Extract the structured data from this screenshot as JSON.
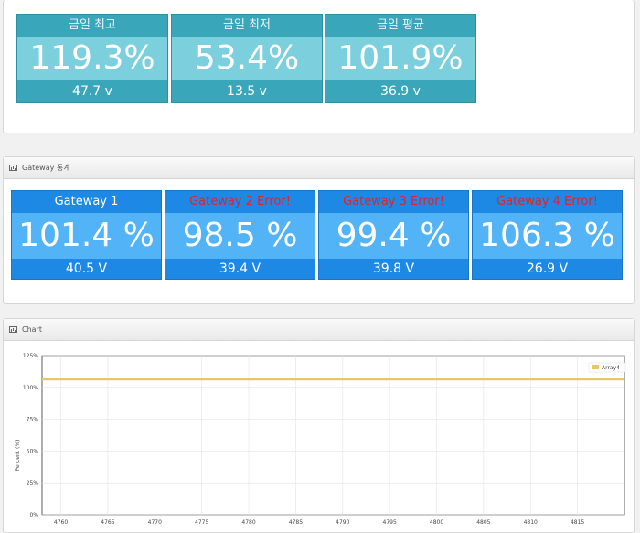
{
  "today_stats": [
    {
      "title": "금일 최고",
      "percent": "119.3%",
      "voltage": "47.7 v"
    },
    {
      "title": "금일 최저",
      "percent": "53.4%",
      "voltage": "13.5 v"
    },
    {
      "title": "금일 평균",
      "percent": "101.9%",
      "voltage": "36.9 v"
    }
  ],
  "gateway_panel": {
    "title": "Gateway 통계",
    "gateways": [
      {
        "title": "Gateway 1",
        "error": false,
        "percent": "101.4 %",
        "voltage": "40.5 V"
      },
      {
        "title": "Gateway 2 Error!",
        "error": true,
        "percent": "98.5 %",
        "voltage": "39.4 V"
      },
      {
        "title": "Gateway 3 Error!",
        "error": true,
        "percent": "99.4 %",
        "voltage": "39.8 V"
      },
      {
        "title": "Gateway 4 Error!",
        "error": true,
        "percent": "106.3 %",
        "voltage": "26.9 V"
      }
    ]
  },
  "chart_panel": {
    "title": "Chart"
  },
  "colors": {
    "cyan_header": "#3aa6b9",
    "cyan_body": "#7ccfdc",
    "blue_header": "#1e88e5",
    "blue_body": "#52b3f7",
    "error_text": "#e0222d",
    "series": "#e8c46a"
  },
  "chart_data": {
    "type": "line",
    "ylabel": "Percent (%)",
    "ylim": [
      0,
      125
    ],
    "yticks": [
      "0%",
      "25%",
      "50%",
      "75%",
      "100%",
      "125%"
    ],
    "yticks_values": [
      0,
      25,
      50,
      75,
      100,
      125
    ],
    "xticks": [
      4760,
      4765,
      4770,
      4775,
      4780,
      4785,
      4790,
      4795,
      4800,
      4805,
      4810,
      4815
    ],
    "xlim": [
      4758,
      4820
    ],
    "grid": true,
    "legend": "top-right",
    "series": [
      {
        "name": "Array4",
        "x": [
          4758,
          4820
        ],
        "y": [
          106.3,
          106.3
        ]
      }
    ]
  }
}
